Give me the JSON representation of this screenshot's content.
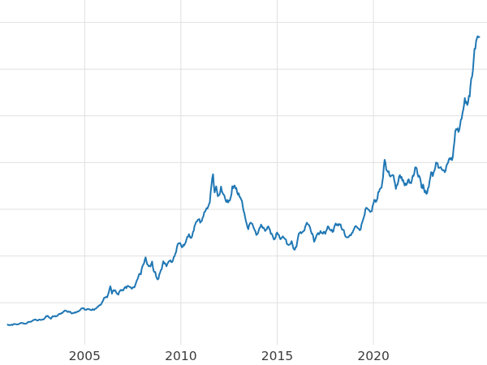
{
  "chart_data": {
    "type": "line",
    "title": "",
    "xlabel": "",
    "ylabel": "",
    "legend": "none",
    "grid": true,
    "line_color": "#1f77b4",
    "grid_color": "#e0e0e0",
    "tick_label_color": "#3a3a3a",
    "background_color": "#ffffff",
    "x_ticks": [
      2005,
      2010,
      2015,
      2020
    ],
    "x_tick_labels": [
      "2005",
      "2010",
      "2015",
      "2020"
    ],
    "y_gridlines": [
      500,
      1000,
      1500,
      2000,
      2500,
      3000,
      3500
    ],
    "xlim": [
      2000.6,
      2025.9
    ],
    "ylim": [
      50,
      3740
    ],
    "x_start": 2001.0,
    "x_step": 0.0833333,
    "noise_amplitude_frac": 0.015,
    "values": [
      265,
      262,
      263,
      260,
      272,
      270,
      267,
      272,
      283,
      283,
      276,
      276,
      281,
      295,
      294,
      302,
      314,
      321,
      313,
      310,
      319,
      316,
      319,
      333,
      357,
      359,
      340,
      328,
      355,
      356,
      351,
      360,
      379,
      379,
      389,
      407,
      414,
      405,
      406,
      403,
      383,
      392,
      398,
      400,
      405,
      420,
      439,
      442,
      424,
      423,
      434,
      429,
      421,
      431,
      424,
      437,
      456,
      470,
      477,
      510,
      550,
      555,
      557,
      611,
      675,
      596,
      634,
      633,
      598,
      586,
      627,
      630,
      631,
      665,
      655,
      680,
      667,
      655,
      665,
      665,
      713,
      755,
      806,
      803,
      890,
      922,
      985,
      910,
      889,
      889,
      940,
      839,
      829,
      760,
      757,
      822,
      858,
      943,
      924,
      890,
      929,
      946,
      934,
      950,
      996,
      1043,
      1127,
      1135,
      1118,
      1095,
      1113,
      1149,
      1205,
      1233,
      1193,
      1216,
      1271,
      1342,
      1370,
      1391,
      1356,
      1373,
      1424,
      1474,
      1512,
      1529,
      1573,
      1755,
      1875,
      1680,
      1745,
      1640,
      1655,
      1743,
      1674,
      1650,
      1586,
      1600,
      1594,
      1627,
      1745,
      1747,
      1722,
      1685,
      1671,
      1628,
      1593,
      1485,
      1414,
      1343,
      1286,
      1348,
      1348,
      1316,
      1276,
      1225,
      1244,
      1300,
      1336,
      1299,
      1288,
      1279,
      1311,
      1296,
      1237,
      1223,
      1176,
      1199,
      1251,
      1227,
      1179,
      1198,
      1199,
      1182,
      1130,
      1118,
      1125,
      1159,
      1086,
      1068,
      1097,
      1200,
      1246,
      1242,
      1260,
      1276,
      1337,
      1340,
      1327,
      1267,
      1238,
      1152,
      1192,
      1234,
      1231,
      1266,
      1246,
      1260,
      1237,
      1283,
      1314,
      1280,
      1282,
      1264,
      1331,
      1330,
      1325,
      1335,
      1303,
      1281,
      1238,
      1201,
      1198,
      1215,
      1221,
      1250,
      1292,
      1320,
      1301,
      1286,
      1284,
      1359,
      1413,
      1500,
      1511,
      1495,
      1471,
      1479,
      1561,
      1597,
      1592,
      1683,
      1716,
      1732,
      1843,
      2030,
      1922,
      1900,
      1866,
      1858,
      1867,
      1808,
      1718,
      1762,
      1850,
      1835,
      1807,
      1784,
      1777,
      1777,
      1820,
      1787,
      1816,
      1856,
      1948,
      1937,
      1848,
      1837,
      1733,
      1765,
      1681,
      1665,
      1725,
      1798,
      1898,
      1855,
      1913,
      2000,
      1992,
      1943,
      1951,
      1918,
      1916,
      1915,
      1984,
      2034,
      2034,
      2026,
      2158,
      2334,
      2351,
      2327,
      2398,
      2470,
      2568,
      2690,
      2651,
      2643,
      2708,
      2897,
      2983,
      3218,
      3300,
      3352,
      3345
    ]
  }
}
